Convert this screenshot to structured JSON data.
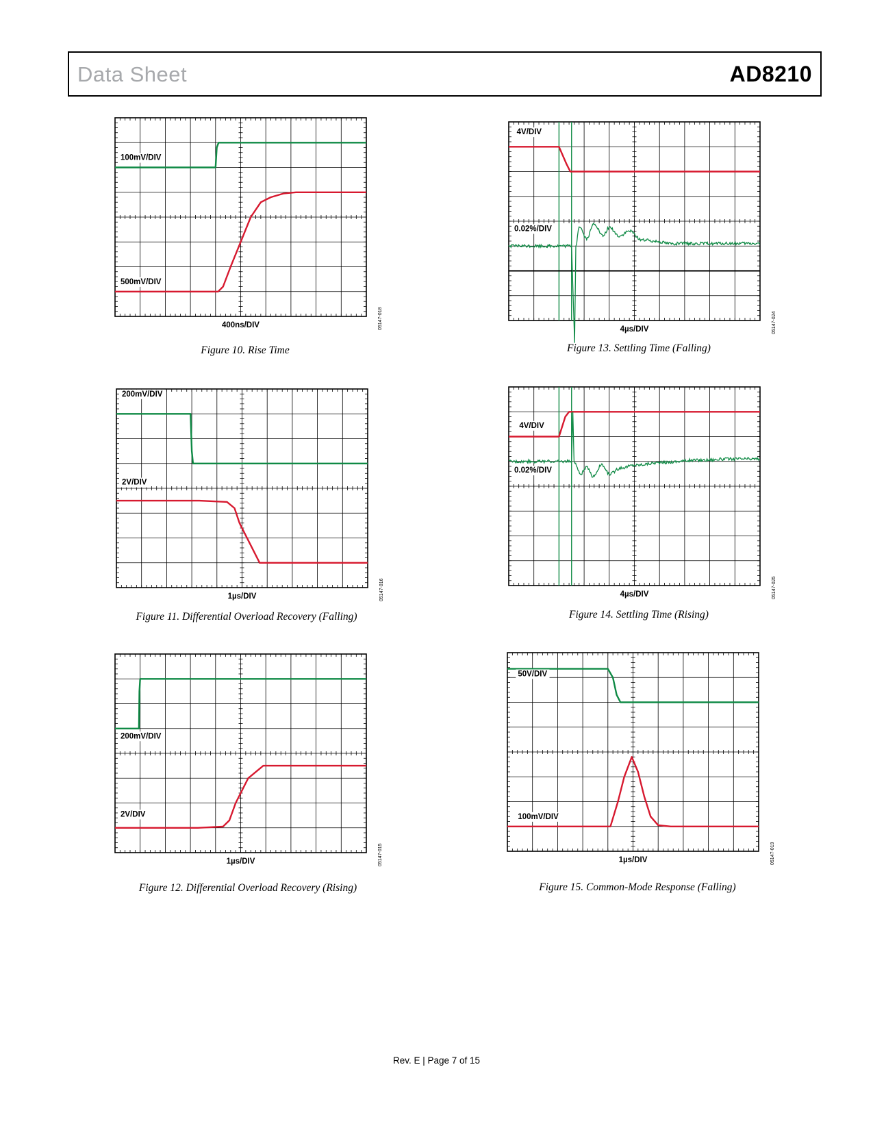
{
  "header": {
    "left_title": "Data Sheet",
    "right_title": "AD8210"
  },
  "footer": "Rev. E | Page 7 of 15",
  "colors": {
    "trace_green": "#0f8a45",
    "trace_red": "#d7192f",
    "grid": "#000000"
  },
  "chart_data": [
    {
      "id": "fig10",
      "type": "line",
      "caption": "Figure 10. Rise Time",
      "xlabel": "400ns/DIV",
      "code": "05147-018",
      "grid": true,
      "divisions": [
        10,
        8
      ],
      "channel_labels": [
        {
          "text": "100mV/DIV",
          "x": 0.0,
          "y": 6.3
        },
        {
          "text": "500mV/DIV",
          "x": 0.0,
          "y": 1.3
        }
      ],
      "series": [
        {
          "color": "green",
          "points": [
            [
              0,
              6
            ],
            [
              4.0,
              6
            ],
            [
              4.05,
              6.8
            ],
            [
              4.12,
              7.0
            ],
            [
              10,
              7.0
            ]
          ]
        },
        {
          "color": "red",
          "points": [
            [
              0,
              1
            ],
            [
              4.1,
              1
            ],
            [
              4.3,
              1.2
            ],
            [
              4.6,
              2.0
            ],
            [
              5.0,
              3.0
            ],
            [
              5.4,
              4.0
            ],
            [
              5.8,
              4.6
            ],
            [
              6.2,
              4.8
            ],
            [
              6.7,
              4.95
            ],
            [
              7.2,
              5.0
            ],
            [
              10,
              5.0
            ]
          ]
        }
      ]
    },
    {
      "id": "fig11",
      "type": "line",
      "caption": "Figure 11. Differential Overload Recovery (Falling)",
      "xlabel": "1µs/DIV",
      "code": "05147-016",
      "grid": true,
      "divisions": [
        10,
        8
      ],
      "channel_labels": [
        {
          "text": "200mV/DIV",
          "x": 0.0,
          "y": 7.7
        },
        {
          "text": "2V/DIV",
          "x": 0.0,
          "y": 4.15
        }
      ],
      "series": [
        {
          "color": "green",
          "points": [
            [
              0,
              7.0
            ],
            [
              2.95,
              7.0
            ],
            [
              3.0,
              5.5
            ],
            [
              3.05,
              5.0
            ],
            [
              10,
              5.0
            ]
          ]
        },
        {
          "color": "red",
          "points": [
            [
              0,
              3.5
            ],
            [
              3.3,
              3.5
            ],
            [
              4.4,
              3.45
            ],
            [
              4.7,
              3.2
            ],
            [
              4.9,
              2.6
            ],
            [
              5.3,
              1.8
            ],
            [
              5.7,
              1.0
            ],
            [
              6.0,
              1.0
            ],
            [
              10,
              1.0
            ]
          ]
        }
      ]
    },
    {
      "id": "fig12",
      "type": "line",
      "caption": "Figure 12. Differential Overload Recovery (Rising)",
      "xlabel": "1µs/DIV",
      "code": "05147-015",
      "grid": true,
      "divisions": [
        10,
        8
      ],
      "channel_labels": [
        {
          "text": "200mV/DIV",
          "x": 0.0,
          "y": 4.6
        },
        {
          "text": "2V/DIV",
          "x": 0.0,
          "y": 1.45
        }
      ],
      "series": [
        {
          "color": "green",
          "points": [
            [
              0,
              5.0
            ],
            [
              0.95,
              5.0
            ],
            [
              0.97,
              6.5
            ],
            [
              1.0,
              7.0
            ],
            [
              10,
              7.0
            ]
          ]
        },
        {
          "color": "red",
          "points": [
            [
              0,
              1.0
            ],
            [
              3.3,
              1.0
            ],
            [
              4.3,
              1.05
            ],
            [
              4.55,
              1.3
            ],
            [
              4.8,
              2.0
            ],
            [
              5.3,
              3.0
            ],
            [
              5.9,
              3.5
            ],
            [
              10,
              3.5
            ]
          ]
        }
      ]
    },
    {
      "id": "fig13",
      "type": "line",
      "caption": "Figure 13. Settling Time (Falling)",
      "xlabel": "4µs/DIV",
      "code": "05147-024",
      "grid": true,
      "divisions": [
        10,
        8
      ],
      "channel_labels": [
        {
          "text": "4V/DIV",
          "x": 0.1,
          "y": 7.5
        },
        {
          "text": "0.02%/DIV",
          "x": 0.0,
          "y": 3.6
        }
      ],
      "series": [
        {
          "color": "red",
          "points": [
            [
              0,
              7.0
            ],
            [
              2.0,
              7.0
            ],
            [
              2.3,
              6.3
            ],
            [
              2.45,
              6.0
            ],
            [
              10,
              6.0
            ]
          ]
        },
        {
          "color": "green",
          "kind": "settle",
          "base": 3.0,
          "noise": 0.06,
          "spike": [
            2.5,
            2.5,
            2.62,
            -0.9
          ],
          "ring": [
            [
              2.8,
              3.8
            ],
            [
              3.1,
              3.3
            ],
            [
              3.4,
              3.9
            ],
            [
              3.75,
              3.4
            ],
            [
              4.0,
              3.75
            ],
            [
              4.4,
              3.4
            ],
            [
              4.8,
              3.6
            ],
            [
              5.3,
              3.25
            ],
            [
              5.8,
              3.2
            ],
            [
              6.5,
              3.1
            ]
          ]
        }
      ],
      "markers": [
        {
          "kind": "vline",
          "x": 2.0
        },
        {
          "kind": "vline",
          "x": 2.5
        },
        {
          "kind": "hline",
          "y": 2.0
        }
      ]
    },
    {
      "id": "fig14",
      "type": "line",
      "caption": "Figure 14. Settling Time (Rising)",
      "xlabel": "4µs/DIV",
      "code": "05147-025",
      "grid": true,
      "divisions": [
        10,
        8
      ],
      "channel_labels": [
        {
          "text": "4V/DIV",
          "x": 0.2,
          "y": 6.35
        },
        {
          "text": "0.02%/DIV",
          "x": 0.0,
          "y": 4.55
        }
      ],
      "series": [
        {
          "color": "red",
          "points": [
            [
              0,
              6.0
            ],
            [
              2.0,
              6.0
            ],
            [
              2.25,
              6.8
            ],
            [
              2.4,
              7.0
            ],
            [
              10,
              7.0
            ]
          ]
        },
        {
          "color": "green",
          "kind": "settle",
          "base": 5.0,
          "noise": 0.06,
          "spike": [
            2.5,
            2.5,
            2.55,
            7.0
          ],
          "ring": [
            [
              2.85,
              4.5
            ],
            [
              3.1,
              4.75
            ],
            [
              3.35,
              4.4
            ],
            [
              3.7,
              4.85
            ],
            [
              4.0,
              4.5
            ],
            [
              4.5,
              4.75
            ],
            [
              5.0,
              4.85
            ],
            [
              6.0,
              4.95
            ],
            [
              7.5,
              5.05
            ],
            [
              9.0,
              5.1
            ]
          ]
        }
      ],
      "markers": [
        {
          "kind": "vline",
          "x": 2.0
        },
        {
          "kind": "vline",
          "x": 2.5
        }
      ]
    },
    {
      "id": "fig15",
      "type": "line",
      "caption": "Figure 15. Common-Mode Response (Falling)",
      "xlabel": "1µs/DIV",
      "code": "05147-019",
      "grid": true,
      "divisions": [
        10,
        8
      ],
      "channel_labels": [
        {
          "text": "50V/DIV",
          "x": 0.2,
          "y": 7.05
        },
        {
          "text": "100mV/DIV",
          "x": 0.2,
          "y": 1.3
        }
      ],
      "series": [
        {
          "color": "green",
          "points": [
            [
              0,
              7.35
            ],
            [
              4.0,
              7.35
            ],
            [
              4.2,
              7.0
            ],
            [
              4.35,
              6.3
            ],
            [
              4.5,
              6.0
            ],
            [
              10,
              6.0
            ]
          ]
        },
        {
          "color": "red",
          "points": [
            [
              0,
              1.0
            ],
            [
              4.1,
              1.0
            ],
            [
              4.4,
              2.0
            ],
            [
              4.65,
              3.0
            ],
            [
              4.95,
              3.8
            ],
            [
              5.2,
              3.2
            ],
            [
              5.45,
              2.2
            ],
            [
              5.7,
              1.4
            ],
            [
              6.0,
              1.05
            ],
            [
              6.5,
              1.0
            ],
            [
              10,
              1.0
            ]
          ]
        }
      ]
    }
  ]
}
